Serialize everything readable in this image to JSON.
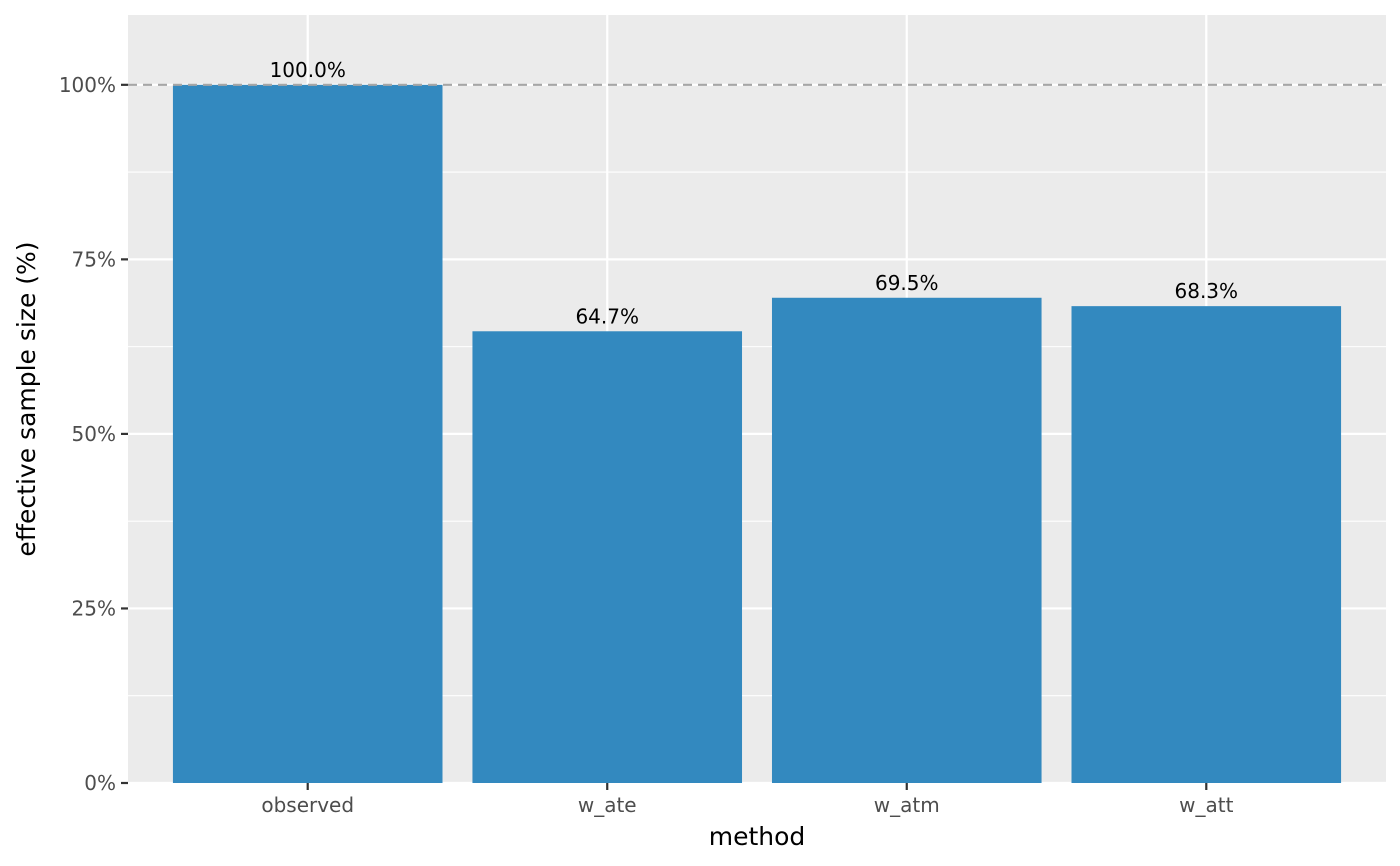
{
  "chart_data": {
    "type": "bar",
    "title": "",
    "xlabel": "method",
    "ylabel": "effective sample size (%)",
    "categories": [
      "observed",
      "w_ate",
      "w_atm",
      "w_att"
    ],
    "values": [
      100.0,
      64.7,
      69.5,
      68.3
    ],
    "data_labels": [
      "100.0%",
      "64.7%",
      "69.5%",
      "68.3%"
    ],
    "ylim": [
      0,
      110
    ],
    "y_ticks": [
      0,
      25,
      50,
      75,
      100
    ],
    "y_tick_labels": [
      "0%",
      "25%",
      "50%",
      "75%",
      "100%"
    ],
    "reference_line": {
      "y": 100,
      "style": "dashed",
      "color": "#a6a6a6"
    },
    "grid": true,
    "legend": "none",
    "colors": {
      "bar": "#3389BF",
      "panel_background": "#EBEBEB",
      "grid": "#FFFFFF",
      "axis_ticks": "#333333"
    }
  }
}
